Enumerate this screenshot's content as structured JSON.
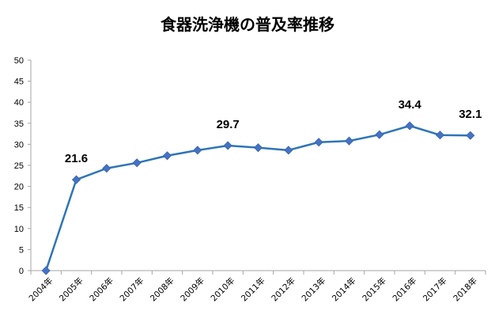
{
  "chart_data": {
    "type": "line",
    "title": "食器洗浄機の普及率推移",
    "xlabel": "",
    "ylabel": "",
    "categories": [
      "2004年",
      "2005年",
      "2006年",
      "2007年",
      "2008年",
      "2009年",
      "2010年",
      "2011年",
      "2012年",
      "2013年",
      "2014年",
      "2015年",
      "2016年",
      "2017年",
      "2018年"
    ],
    "series": [
      {
        "values": [
          0,
          21.6,
          24.3,
          25.6,
          27.3,
          28.6,
          29.7,
          29.2,
          28.6,
          30.5,
          30.8,
          32.3,
          34.4,
          32.2,
          32.1
        ]
      }
    ],
    "ylim": [
      0,
      50
    ],
    "yticks": [
      0,
      5,
      10,
      15,
      20,
      25,
      30,
      35,
      40,
      45,
      50
    ],
    "data_labels": [
      {
        "index": 1,
        "text": "21.6"
      },
      {
        "index": 6,
        "text": "29.7"
      },
      {
        "index": 12,
        "text": "34.4"
      },
      {
        "index": 14,
        "text": "32.1"
      }
    ],
    "grid": false,
    "legend": "none",
    "colors": {
      "line": "#2E75B6",
      "marker": "#4472C4",
      "axis": "#A6A6A6"
    }
  }
}
